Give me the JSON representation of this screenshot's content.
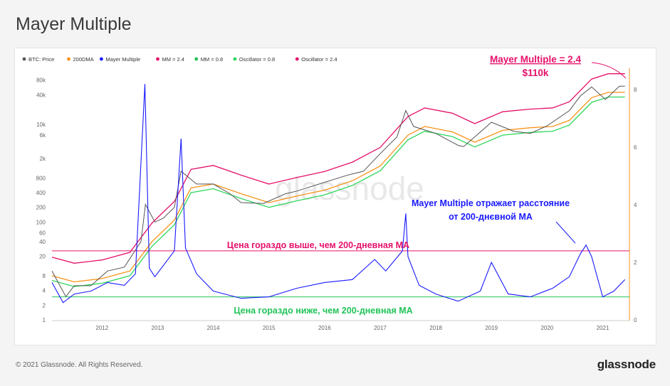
{
  "page": {
    "title": "Mayer Multiple",
    "copyright": "© 2021 Glassnode. All Rights Reserved.",
    "brand": "glassnode"
  },
  "chart_data": {
    "type": "line",
    "watermark": "glassnode",
    "legend": [
      {
        "label": "BTC: Price",
        "color": "#555555"
      },
      {
        "label": "200DMA",
        "color": "#f7931a"
      },
      {
        "label": "Mayer Multiple",
        "color": "#1a1aff"
      },
      {
        "label": "MM = 2.4",
        "color": "#e6106a"
      },
      {
        "label": "MM = 0.8",
        "color": "#22c35a"
      },
      {
        "label": "Oscillator = 0.8",
        "color": "#2fd65c"
      },
      {
        "label": "Oscillator = 2.4",
        "color": "#e6106a"
      }
    ],
    "x_ticks": [
      "2012",
      "2013",
      "2014",
      "2015",
      "2016",
      "2017",
      "2018",
      "2019",
      "2020",
      "2021"
    ],
    "y_left_scale": "log",
    "y_left_ticks": [
      "1",
      "2",
      "4",
      "8",
      "20",
      "40",
      "60",
      "100",
      "200",
      "400",
      "800",
      "2k",
      "6k",
      "10k",
      "40k",
      "80k"
    ],
    "y_left_range": [
      1,
      100000
    ],
    "y_right_ticks": [
      "0",
      "2",
      "4",
      "6",
      "8"
    ],
    "y_right_range": [
      0,
      8.5
    ],
    "mm_levels": {
      "upper": 2.4,
      "lower": 0.8
    },
    "series": [
      {
        "name": "BTC: Price",
        "x": [
          2011.6,
          2011.85,
          2012.0,
          2012.3,
          2012.6,
          2012.9,
          2013.2,
          2013.28,
          2013.45,
          2013.6,
          2013.8,
          2013.92,
          2014.2,
          2014.5,
          2014.8,
          2015.0,
          2015.4,
          2015.8,
          2016.0,
          2016.5,
          2016.9,
          2017.2,
          2017.5,
          2017.8,
          2017.96,
          2018.1,
          2018.5,
          2018.9,
          2019.0,
          2019.5,
          2019.9,
          2020.2,
          2020.5,
          2020.9,
          2021.1,
          2021.3,
          2021.55,
          2021.8,
          2021.9
        ],
        "values": [
          10,
          3,
          5,
          5,
          10,
          12,
          40,
          230,
          100,
          120,
          200,
          1100,
          600,
          600,
          380,
          250,
          240,
          380,
          430,
          650,
          900,
          1100,
          2500,
          5500,
          19000,
          9000,
          6500,
          3700,
          3500,
          11000,
          7200,
          6500,
          9300,
          19000,
          38000,
          58000,
          32000,
          60000,
          60000
        ]
      },
      {
        "name": "200DMA",
        "x": [
          2011.6,
          2012.0,
          2012.5,
          2013.0,
          2013.4,
          2013.8,
          2014.1,
          2014.5,
          2015.0,
          2015.5,
          2016.0,
          2016.5,
          2017.0,
          2017.5,
          2018.0,
          2018.3,
          2018.8,
          2019.2,
          2019.7,
          2020.2,
          2020.6,
          2020.9,
          2021.3,
          2021.6,
          2021.9
        ],
        "values": [
          8,
          6,
          7,
          10,
          40,
          110,
          500,
          600,
          380,
          250,
          340,
          450,
          700,
          1400,
          6000,
          9000,
          7000,
          4300,
          7500,
          8500,
          9000,
          12000,
          35000,
          45000,
          45000
        ]
      },
      {
        "name": "Mayer Multiple",
        "x": [
          2011.6,
          2011.8,
          2012.0,
          2012.3,
          2012.6,
          2012.9,
          2013.1,
          2013.27,
          2013.35,
          2013.45,
          2013.8,
          2013.92,
          2014.0,
          2014.2,
          2014.5,
          2015.0,
          2015.5,
          2016.0,
          2016.5,
          2017.0,
          2017.4,
          2017.6,
          2017.9,
          2017.96,
          2018.0,
          2018.2,
          2018.5,
          2018.9,
          2019.3,
          2019.5,
          2019.8,
          2020.2,
          2020.6,
          2020.9,
          2021.1,
          2021.2,
          2021.3,
          2021.5,
          2021.7,
          2021.9
        ],
        "values": [
          1.3,
          0.6,
          0.9,
          1.0,
          1.3,
          1.2,
          1.6,
          8.2,
          1.8,
          1.5,
          2.4,
          6.3,
          2.5,
          1.6,
          1.0,
          0.75,
          0.8,
          1.1,
          1.3,
          1.4,
          2.1,
          1.7,
          2.4,
          3.7,
          2.2,
          1.2,
          0.9,
          0.65,
          1.0,
          2.0,
          0.9,
          0.8,
          1.1,
          1.5,
          2.3,
          2.6,
          2.2,
          0.8,
          1.0,
          1.4
        ]
      }
    ],
    "annotations": [
      {
        "text": "Mayer Multiple = 2.4",
        "color": "#e6106a"
      },
      {
        "text": "$110k",
        "color": "#e6106a"
      },
      {
        "text": "Mayer Multiple отражает расстояние",
        "color": "#1a1aff"
      },
      {
        "text": "от 200-днєвной МА",
        "color": "#1a1aff"
      },
      {
        "text": "Цена гораздо выше, чем 200-дневная МА",
        "color": "#e6106a"
      },
      {
        "text": "Цена гораздо ниже, чем 200-дневная МА",
        "color": "#22c35a"
      }
    ]
  }
}
